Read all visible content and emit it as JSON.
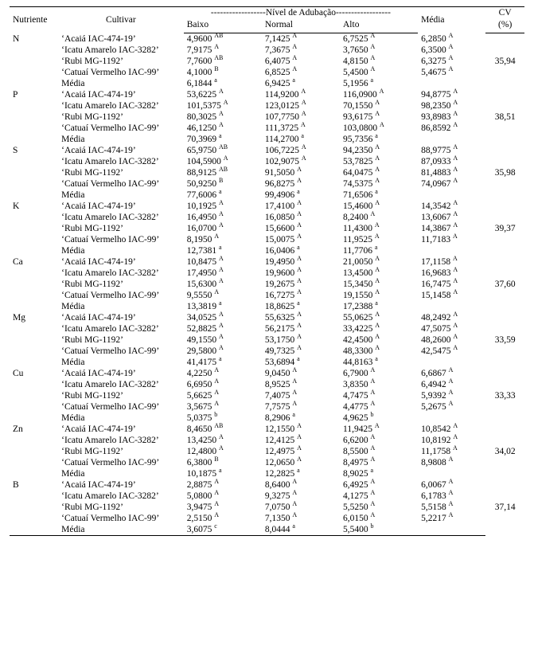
{
  "headers": {
    "nutriente": "Nutriente",
    "cultivar": "Cultivar",
    "nivel_dash": "------------------Nível de Adubação------------------",
    "baixo": "Baixo",
    "normal": "Normal",
    "alto": "Alto",
    "media": "Média",
    "cv": "CV",
    "cv_pct": "(%)"
  },
  "cultivars": [
    "‘Acaiá IAC-474-19’",
    "‘Icatu Amarelo IAC-3282’",
    "‘Rubi MG-1192’",
    "‘Catuaí Vermelho IAC-99’",
    "Média"
  ],
  "nutrients": [
    {
      "name": "N",
      "cv": "35,94",
      "rows": [
        {
          "b": "4,9600",
          "bs": "AB",
          "n": "7,1425",
          "ns": "A",
          "a": "6,7525",
          "as": "A",
          "m": "6,2850",
          "ms": "A"
        },
        {
          "b": "7,9175",
          "bs": "A",
          "n": "7,3675",
          "ns": "A",
          "a": "3,7650",
          "as": "A",
          "m": "6,3500",
          "ms": "A"
        },
        {
          "b": "7,7600",
          "bs": "AB",
          "n": "6,4075",
          "ns": "A",
          "a": "4,8150",
          "as": "A",
          "m": "6,3275",
          "ms": "A"
        },
        {
          "b": "4,1000",
          "bs": "B",
          "n": "6,8525",
          "ns": "A",
          "a": "5,4500",
          "as": "A",
          "m": "5,4675",
          "ms": "A"
        },
        {
          "b": "6,1844",
          "bs": "a",
          "n": "6,9425",
          "ns": "a",
          "a": "5,1956",
          "as": "a",
          "m": "",
          "ms": ""
        }
      ]
    },
    {
      "name": "P",
      "cv": "38,51",
      "rows": [
        {
          "b": "53,6225",
          "bs": "A",
          "n": "114,9200",
          "ns": "A",
          "a": "116,0900",
          "as": "A",
          "m": "94,8775",
          "ms": "A"
        },
        {
          "b": "101,5375",
          "bs": "A",
          "n": "123,0125",
          "ns": "A",
          "a": "70,1550",
          "as": "A",
          "m": "98,2350",
          "ms": "A"
        },
        {
          "b": "80,3025",
          "bs": "A",
          "n": "107,7750",
          "ns": "A",
          "a": "93,6175",
          "as": "A",
          "m": "93,8983",
          "ms": "A"
        },
        {
          "b": "46,1250",
          "bs": "A",
          "n": "111,3725",
          "ns": "A",
          "a": "103,0800",
          "as": "A",
          "m": "86,8592",
          "ms": "A"
        },
        {
          "b": "70,3969",
          "bs": "a",
          "n": "114,2700",
          "ns": "a",
          "a": "95,7356",
          "as": "a",
          "m": "",
          "ms": ""
        }
      ]
    },
    {
      "name": "S",
      "cv": "35,98",
      "rows": [
        {
          "b": "65,9750",
          "bs": "AB",
          "n": "106,7225",
          "ns": "A",
          "a": "94,2350",
          "as": "A",
          "m": "88,9775",
          "ms": "A"
        },
        {
          "b": "104,5900",
          "bs": "A",
          "n": "102,9075",
          "ns": "A",
          "a": "53,7825",
          "as": "A",
          "m": "87,0933",
          "ms": "A"
        },
        {
          "b": "88,9125",
          "bs": "AB",
          "n": "91,5050",
          "ns": "A",
          "a": "64,0475",
          "as": "A",
          "m": "81,4883",
          "ms": "A"
        },
        {
          "b": "50,9250",
          "bs": "B",
          "n": "96,8275",
          "ns": "A",
          "a": "74,5375",
          "as": "A",
          "m": "74,0967",
          "ms": "A"
        },
        {
          "b": "77,6006",
          "bs": "a",
          "n": "99,4906",
          "ns": "a",
          "a": "71,6506",
          "as": "a",
          "m": "",
          "ms": ""
        }
      ]
    },
    {
      "name": "K",
      "cv": "39,37",
      "rows": [
        {
          "b": "10,1925",
          "bs": "A",
          "n": "17,4100",
          "ns": "A",
          "a": "15,4600",
          "as": "A",
          "m": "14,3542",
          "ms": "A"
        },
        {
          "b": "16,4950",
          "bs": "A",
          "n": "16,0850",
          "ns": "A",
          "a": "8,2400",
          "as": "A",
          "m": "13,6067",
          "ms": "A"
        },
        {
          "b": "16,0700",
          "bs": "A",
          "n": "15,6600",
          "ns": "A",
          "a": "11,4300",
          "as": "A",
          "m": "14,3867",
          "ms": "A"
        },
        {
          "b": "8,1950",
          "bs": "A",
          "n": "15,0075",
          "ns": "A",
          "a": "11,9525",
          "as": "A",
          "m": "11,7183",
          "ms": "A"
        },
        {
          "b": "12,7381",
          "bs": "a",
          "n": "16,0406",
          "ns": "a",
          "a": "11,7706",
          "as": "a",
          "m": "",
          "ms": ""
        }
      ]
    },
    {
      "name": "Ca",
      "cv": "37,60",
      "rows": [
        {
          "b": "10,8475",
          "bs": "A",
          "n": "19,4950",
          "ns": "A",
          "a": "21,0050",
          "as": "A",
          "m": "17,1158",
          "ms": "A"
        },
        {
          "b": "17,4950",
          "bs": "A",
          "n": "19,9600",
          "ns": "A",
          "a": "13,4500",
          "as": "A",
          "m": "16,9683",
          "ms": "A"
        },
        {
          "b": "15,6300",
          "bs": "A",
          "n": "19,2675",
          "ns": "A",
          "a": "15,3450",
          "as": "A",
          "m": "16,7475",
          "ms": "A"
        },
        {
          "b": "9,5550",
          "bs": "A",
          "n": "16,7275",
          "ns": "A",
          "a": "19,1550",
          "as": "A",
          "m": "15,1458",
          "ms": "A"
        },
        {
          "b": "13,3819",
          "bs": "a",
          "n": "18,8625",
          "ns": "a",
          "a": "17,2388",
          "as": "a",
          "m": "",
          "ms": ""
        }
      ]
    },
    {
      "name": "Mg",
      "cv": "33,59",
      "rows": [
        {
          "b": "34,0525",
          "bs": "A",
          "n": "55,6325",
          "ns": "A",
          "a": "55,0625",
          "as": "A",
          "m": "48,2492",
          "ms": "A"
        },
        {
          "b": "52,8825",
          "bs": "A",
          "n": "56,2175",
          "ns": "A",
          "a": "33,4225",
          "as": "A",
          "m": "47,5075",
          "ms": "A"
        },
        {
          "b": "49,1550",
          "bs": "A",
          "n": "53,1750",
          "ns": "A",
          "a": "42,4500",
          "as": "A",
          "m": "48,2600",
          "ms": "A"
        },
        {
          "b": "29,5800",
          "bs": "A",
          "n": "49,7325",
          "ns": "A",
          "a": "48,3300",
          "as": "A",
          "m": "42,5475",
          "ms": "A"
        },
        {
          "b": "41,4175",
          "bs": "a",
          "n": "53,6894",
          "ns": "a",
          "a": "44,8163",
          "as": "a",
          "m": "",
          "ms": ""
        }
      ]
    },
    {
      "name": "Cu",
      "cv": "33,33",
      "rows": [
        {
          "b": "4,2250",
          "bs": "A",
          "n": "9,0450",
          "ns": "A",
          "a": "6,7900",
          "as": "A",
          "m": "6,6867",
          "ms": "A"
        },
        {
          "b": "6,6950",
          "bs": "A",
          "n": "8,9525",
          "ns": "A",
          "a": "3,8350",
          "as": "A",
          "m": "6,4942",
          "ms": "A"
        },
        {
          "b": "5,6625",
          "bs": "A",
          "n": "7,4075",
          "ns": "A",
          "a": "4,7475",
          "as": "A",
          "m": "5,9392",
          "ms": "A"
        },
        {
          "b": "3,5675",
          "bs": "A",
          "n": "7,7575",
          "ns": "A",
          "a": "4,4775",
          "as": "A",
          "m": "5,2675",
          "ms": "A"
        },
        {
          "b": "5,0375",
          "bs": "b",
          "n": "8,2906",
          "ns": "a",
          "a": "4,9625",
          "as": "b",
          "m": "",
          "ms": ""
        }
      ]
    },
    {
      "name": "Zn",
      "cv": "34,02",
      "rows": [
        {
          "b": "8,4650",
          "bs": "AB",
          "n": "12,1550",
          "ns": "A",
          "a": "11,9425",
          "as": "A",
          "m": "10,8542",
          "ms": "A"
        },
        {
          "b": "13,4250",
          "bs": "A",
          "n": "12,4125",
          "ns": "A",
          "a": "6,6200",
          "as": "A",
          "m": "10,8192",
          "ms": "A"
        },
        {
          "b": "12,4800",
          "bs": "A",
          "n": "12,4975",
          "ns": "A",
          "a": "8,5500",
          "as": "A",
          "m": "11,1758",
          "ms": "A"
        },
        {
          "b": "6,3800",
          "bs": "B",
          "n": "12,0650",
          "ns": "A",
          "a": "8,4975",
          "as": "A",
          "m": "8,9808",
          "ms": "A"
        },
        {
          "b": "10,1875",
          "bs": "a",
          "n": "12,2825",
          "ns": "a",
          "a": "8,9025",
          "as": "a",
          "m": "",
          "ms": ""
        }
      ]
    },
    {
      "name": "B",
      "cv": "37,14",
      "rows": [
        {
          "b": "2,8875",
          "bs": "A",
          "n": "8,6400",
          "ns": "A",
          "a": "6,4925",
          "as": "A",
          "m": "6,0067",
          "ms": "A"
        },
        {
          "b": "5,0800",
          "bs": "A",
          "n": "9,3275",
          "ns": "A",
          "a": "4,1275",
          "as": "A",
          "m": "6,1783",
          "ms": "A"
        },
        {
          "b": "3,9475",
          "bs": "A",
          "n": "7,0750",
          "ns": "A",
          "a": "5,5250",
          "as": "A",
          "m": "5,5158",
          "ms": "A"
        },
        {
          "b": "2,5150",
          "bs": "A",
          "n": "7,1350",
          "ns": "A",
          "a": "6,0150",
          "as": "A",
          "m": "5,2217",
          "ms": "A"
        },
        {
          "b": "3,6075",
          "bs": "c",
          "n": "8,0444",
          "ns": "a",
          "a": "5,5400",
          "as": "b",
          "m": "",
          "ms": ""
        }
      ]
    }
  ]
}
